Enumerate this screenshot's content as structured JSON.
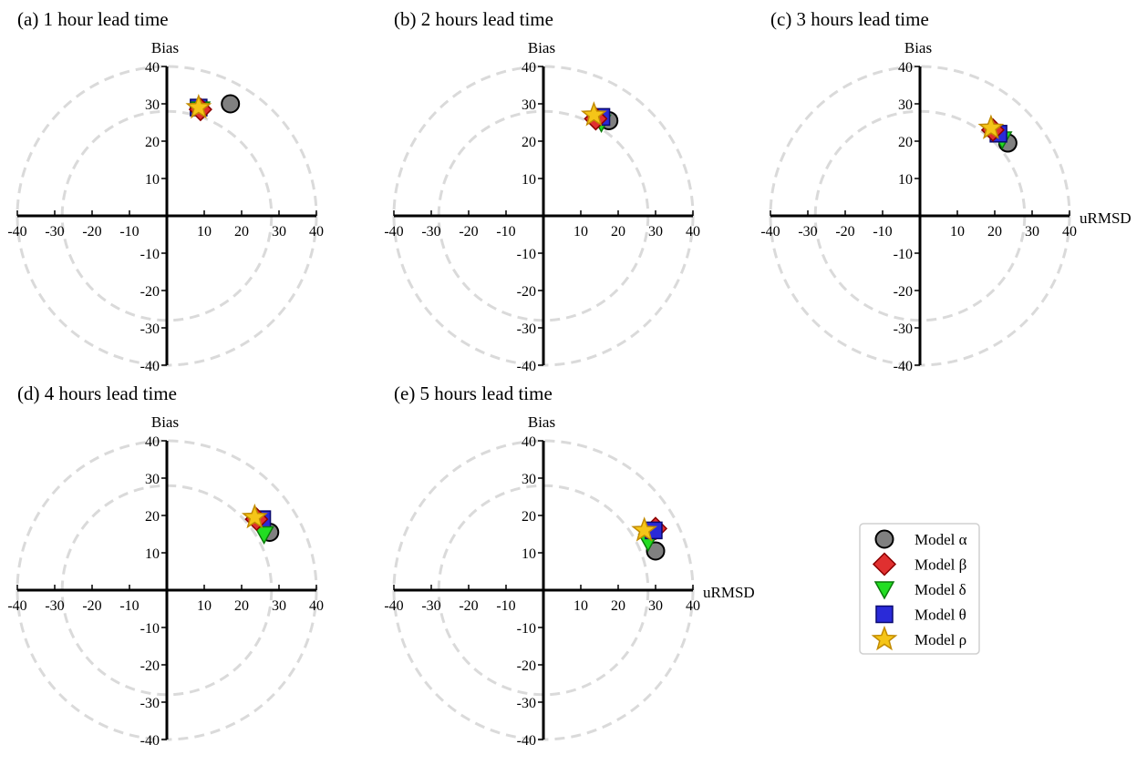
{
  "chart_data": {
    "type": "scatter",
    "subtype": "target-diagram",
    "xlabel": "uRMSD",
    "ylabel": "Bias",
    "xlim": [
      -40,
      40
    ],
    "ylim": [
      -40,
      40
    ],
    "ticks": [
      -40,
      -30,
      -20,
      -10,
      10,
      20,
      30,
      40
    ],
    "reference_circles": [
      28,
      40
    ],
    "legend": {
      "position": "bottom-right",
      "entries": [
        {
          "name": "Model α",
          "marker": "circle",
          "color": "#808080"
        },
        {
          "name": "Model β",
          "marker": "diamond",
          "color": "#e03030"
        },
        {
          "name": "Model δ",
          "marker": "triangle-down",
          "color": "#22dd22"
        },
        {
          "name": "Model θ",
          "marker": "square",
          "color": "#2a2ad8"
        },
        {
          "name": "Model ρ",
          "marker": "star",
          "color": "#f5c518"
        }
      ]
    },
    "panels": [
      {
        "title": "(a) 1 hour lead time",
        "show_xlabel": false,
        "points": [
          {
            "model": "Model α",
            "x": 17,
            "y": 30
          },
          {
            "model": "Model θ",
            "x": 8.5,
            "y": 29
          },
          {
            "model": "Model δ",
            "x": 9,
            "y": 28.5
          },
          {
            "model": "Model β",
            "x": 9,
            "y": 28.5
          },
          {
            "model": "Model ρ",
            "x": 8.5,
            "y": 29
          }
        ]
      },
      {
        "title": "(b) 2 hours lead time",
        "show_xlabel": false,
        "points": [
          {
            "model": "Model α",
            "x": 17.5,
            "y": 25.5
          },
          {
            "model": "Model δ",
            "x": 15.5,
            "y": 25
          },
          {
            "model": "Model θ",
            "x": 15.5,
            "y": 26.5
          },
          {
            "model": "Model β",
            "x": 14,
            "y": 26
          },
          {
            "model": "Model ρ",
            "x": 13.5,
            "y": 27
          }
        ]
      },
      {
        "title": "(c) 3 hours lead time",
        "show_xlabel": true,
        "points": [
          {
            "model": "Model α",
            "x": 23.5,
            "y": 19.5
          },
          {
            "model": "Model δ",
            "x": 22,
            "y": 20.5
          },
          {
            "model": "Model θ",
            "x": 21,
            "y": 22
          },
          {
            "model": "Model β",
            "x": 19.5,
            "y": 23
          },
          {
            "model": "Model ρ",
            "x": 19,
            "y": 23.5
          }
        ]
      },
      {
        "title": "(d) 4 hours lead time",
        "show_xlabel": false,
        "points": [
          {
            "model": "Model α",
            "x": 27.5,
            "y": 15.5
          },
          {
            "model": "Model θ",
            "x": 25.5,
            "y": 19
          },
          {
            "model": "Model δ",
            "x": 26,
            "y": 15
          },
          {
            "model": "Model β",
            "x": 24,
            "y": 19
          },
          {
            "model": "Model ρ",
            "x": 23.5,
            "y": 19.5
          }
        ]
      },
      {
        "title": "(e) 5 hours lead time",
        "show_xlabel": true,
        "points": [
          {
            "model": "Model α",
            "x": 30,
            "y": 10.5
          },
          {
            "model": "Model δ",
            "x": 28,
            "y": 13
          },
          {
            "model": "Model β",
            "x": 30,
            "y": 16.5
          },
          {
            "model": "Model θ",
            "x": 29.5,
            "y": 16
          },
          {
            "model": "Model ρ",
            "x": 27,
            "y": 16
          }
        ]
      }
    ]
  }
}
